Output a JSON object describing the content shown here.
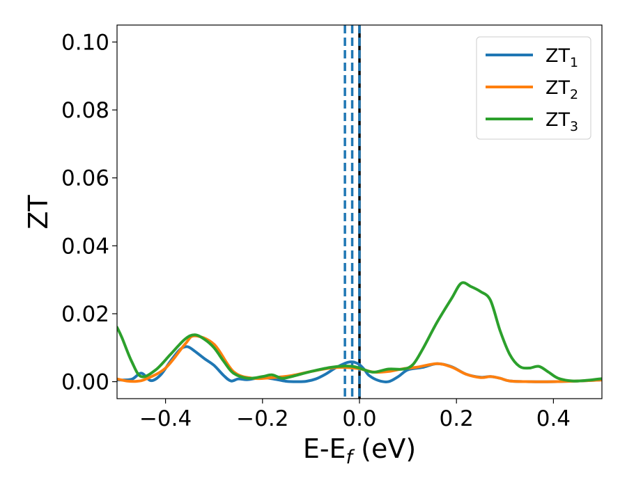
{
  "chart_data": {
    "type": "line",
    "xlabel": "E-E",
    "xlabel_sub": "f",
    "xlabel_unit": " (eV)",
    "ylabel": "ZT",
    "xlim": [
      -0.5,
      0.5
    ],
    "ylim": [
      -0.005,
      0.105
    ],
    "xticks": [
      -0.4,
      -0.2,
      0.0,
      0.2,
      0.4
    ],
    "xtick_labels": [
      "−0.4",
      "−0.2",
      "0.0",
      "0.2",
      "0.4"
    ],
    "yticks": [
      0.0,
      0.02,
      0.04,
      0.06,
      0.08,
      0.1
    ],
    "ytick_labels": [
      "0.00",
      "0.02",
      "0.04",
      "0.06",
      "0.08",
      "0.10"
    ],
    "grid": false,
    "legend_position": "top-right",
    "series": [
      {
        "name": "ZT",
        "sub": "1",
        "color": "#1f77b4",
        "x": [
          -0.5,
          -0.47,
          -0.45,
          -0.43,
          -0.41,
          -0.39,
          -0.37,
          -0.355,
          -0.34,
          -0.32,
          -0.3,
          -0.28,
          -0.265,
          -0.25,
          -0.23,
          -0.2,
          -0.17,
          -0.15,
          -0.13,
          -0.11,
          -0.09,
          -0.07,
          -0.05,
          -0.03,
          -0.02,
          -0.01,
          0.0,
          0.01,
          0.02,
          0.04,
          0.06,
          0.08,
          0.1,
          0.13,
          0.16,
          0.19,
          0.22,
          0.25,
          0.27,
          0.29,
          0.31,
          0.35,
          0.4,
          0.45,
          0.5
        ],
        "y": [
          0.0005,
          0.0007,
          0.0025,
          0.0003,
          0.002,
          0.006,
          0.0095,
          0.0103,
          0.009,
          0.0068,
          0.0048,
          0.0018,
          0.0002,
          0.0008,
          0.0006,
          0.0012,
          0.0006,
          0.0001,
          0.0,
          0.0001,
          0.0008,
          0.0022,
          0.004,
          0.0054,
          0.0058,
          0.0057,
          0.005,
          0.0036,
          0.0018,
          0.0003,
          0.0,
          0.0015,
          0.0035,
          0.0042,
          0.0053,
          0.0044,
          0.0022,
          0.0013,
          0.0015,
          0.001,
          0.0002,
          0.0,
          0.0,
          0.0002,
          0.0005
        ]
      },
      {
        "name": "ZT",
        "sub": "2",
        "color": "#ff7f0e",
        "x": [
          -0.5,
          -0.48,
          -0.46,
          -0.44,
          -0.4,
          -0.36,
          -0.34,
          -0.3,
          -0.26,
          -0.22,
          -0.18,
          -0.14,
          -0.1,
          -0.06,
          -0.03,
          0.0,
          0.03,
          0.06,
          0.09,
          0.12,
          0.16,
          0.19,
          0.22,
          0.25,
          0.27,
          0.29,
          0.31,
          0.35,
          0.4,
          0.45,
          0.5
        ],
        "y": [
          0.0008,
          0.0002,
          0.0001,
          0.0008,
          0.004,
          0.011,
          0.0135,
          0.011,
          0.003,
          0.001,
          0.0012,
          0.0018,
          0.003,
          0.004,
          0.0042,
          0.0038,
          0.0028,
          0.003,
          0.0038,
          0.0043,
          0.0053,
          0.0043,
          0.0022,
          0.0012,
          0.0015,
          0.001,
          0.0002,
          0.0,
          0.0,
          0.0002,
          0.0005
        ]
      },
      {
        "name": "ZT",
        "sub": "3",
        "color": "#2ca02c",
        "x": [
          -0.5,
          -0.49,
          -0.47,
          -0.45,
          -0.42,
          -0.39,
          -0.36,
          -0.34,
          -0.32,
          -0.3,
          -0.28,
          -0.26,
          -0.23,
          -0.2,
          -0.18,
          -0.16,
          -0.14,
          -0.1,
          -0.06,
          -0.03,
          -0.01,
          0.01,
          0.03,
          0.06,
          0.09,
          0.11,
          0.13,
          0.16,
          0.19,
          0.21,
          0.23,
          0.25,
          0.27,
          0.29,
          0.31,
          0.33,
          0.35,
          0.37,
          0.39,
          0.41,
          0.44,
          0.47,
          0.5
        ],
        "y": [
          0.016,
          0.013,
          0.006,
          0.0015,
          0.0035,
          0.008,
          0.0125,
          0.0138,
          0.0125,
          0.01,
          0.006,
          0.0025,
          0.001,
          0.0015,
          0.002,
          0.001,
          0.0015,
          0.003,
          0.0042,
          0.0046,
          0.0044,
          0.0035,
          0.0028,
          0.0037,
          0.0037,
          0.005,
          0.0095,
          0.0175,
          0.0245,
          0.029,
          0.028,
          0.0265,
          0.024,
          0.015,
          0.008,
          0.0045,
          0.004,
          0.0045,
          0.0028,
          0.001,
          0.0002,
          0.0004,
          0.0009
        ]
      }
    ],
    "vlines": [
      {
        "x": -0.03,
        "color": "#1f77b4",
        "style": "dashed"
      },
      {
        "x": -0.015,
        "color": "#1f77b4",
        "style": "dashed"
      },
      {
        "x": 0.0,
        "color": "#000000",
        "style": "solid"
      },
      {
        "x": 0.0,
        "color": "#1f77b4",
        "style": "dashed"
      }
    ]
  }
}
